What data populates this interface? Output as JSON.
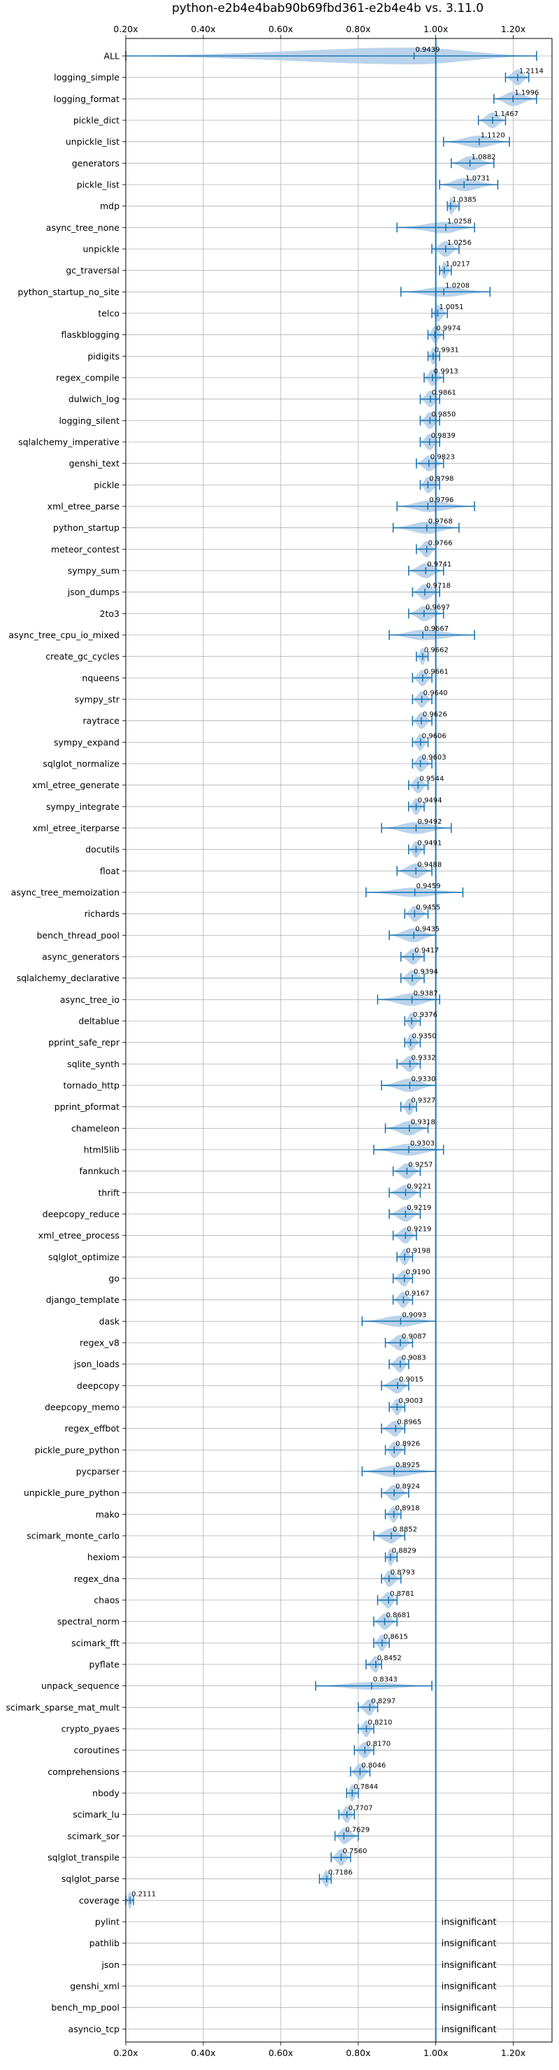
{
  "chart_data": {
    "type": "violin",
    "title": "python-e2b4e4bab90b69fbd361-e2b4e4b vs. 3.11.0",
    "xlim": [
      0.2,
      1.3
    ],
    "xticks": [
      0.2,
      0.4,
      0.6,
      0.8,
      1.0,
      1.2
    ],
    "xtick_labels": [
      "0.20x",
      "0.40x",
      "0.60x",
      "0.80x",
      "1.00x",
      "1.20x"
    ],
    "reference_line": 1.0,
    "grid": true,
    "accent_color": "#1f77b4",
    "violin_color": "#aecbe6",
    "insignificant_label": "insignificant",
    "categories": [
      "ALL",
      "logging_simple",
      "logging_format",
      "pickle_dict",
      "unpickle_list",
      "generators",
      "pickle_list",
      "mdp",
      "async_tree_none",
      "unpickle",
      "gc_traversal",
      "python_startup_no_site",
      "telco",
      "flaskblogging",
      "pidigits",
      "regex_compile",
      "dulwich_log",
      "logging_silent",
      "sqlalchemy_imperative",
      "genshi_text",
      "pickle",
      "xml_etree_parse",
      "python_startup",
      "meteor_contest",
      "sympy_sum",
      "json_dumps",
      "2to3",
      "async_tree_cpu_io_mixed",
      "create_gc_cycles",
      "nqueens",
      "sympy_str",
      "raytrace",
      "sympy_expand",
      "sqlglot_normalize",
      "xml_etree_generate",
      "sympy_integrate",
      "xml_etree_iterparse",
      "docutils",
      "float",
      "async_tree_memoization",
      "richards",
      "bench_thread_pool",
      "async_generators",
      "sqlalchemy_declarative",
      "async_tree_io",
      "deltablue",
      "pprint_safe_repr",
      "sqlite_synth",
      "tornado_http",
      "pprint_pformat",
      "chameleon",
      "html5lib",
      "fannkuch",
      "thrift",
      "deepcopy_reduce",
      "xml_etree_process",
      "sqlglot_optimize",
      "go",
      "django_template",
      "dask",
      "regex_v8",
      "json_loads",
      "deepcopy",
      "deepcopy_memo",
      "regex_effbot",
      "pickle_pure_python",
      "pycparser",
      "unpickle_pure_python",
      "mako",
      "scimark_monte_carlo",
      "hexiom",
      "regex_dna",
      "chaos",
      "spectral_norm",
      "scimark_fft",
      "pyflate",
      "unpack_sequence",
      "scimark_sparse_mat_mult",
      "crypto_pyaes",
      "coroutines",
      "comprehensions",
      "nbody",
      "scimark_lu",
      "scimark_sor",
      "sqlglot_transpile",
      "sqlglot_parse",
      "coverage",
      "pylint",
      "pathlib",
      "json",
      "genshi_xml",
      "bench_mp_pool",
      "asyncio_tcp"
    ],
    "values": [
      0.9439,
      1.2114,
      1.1996,
      1.1467,
      1.112,
      1.0882,
      1.0731,
      1.0385,
      1.0258,
      1.0256,
      1.0217,
      1.0208,
      1.0051,
      0.9974,
      0.9931,
      0.9913,
      0.9861,
      0.985,
      0.9839,
      0.9823,
      0.9798,
      0.9796,
      0.9768,
      0.9766,
      0.9741,
      0.9718,
      0.9697,
      0.9667,
      0.9662,
      0.9661,
      0.964,
      0.9626,
      0.9606,
      0.9603,
      0.9544,
      0.9494,
      0.9492,
      0.9491,
      0.9488,
      0.9459,
      0.9455,
      0.9435,
      0.9417,
      0.9394,
      0.9387,
      0.9376,
      0.935,
      0.9332,
      0.933,
      0.9327,
      0.9318,
      0.9303,
      0.9257,
      0.9221,
      0.9219,
      0.9219,
      0.9198,
      0.919,
      0.9167,
      0.9093,
      0.9087,
      0.9083,
      0.9015,
      0.9003,
      0.8965,
      0.8926,
      0.8925,
      0.8924,
      0.8918,
      0.8852,
      0.8829,
      0.8793,
      0.8781,
      0.8681,
      0.8615,
      0.8452,
      0.8343,
      0.8297,
      0.821,
      0.817,
      0.8046,
      0.7844,
      0.7707,
      0.7629,
      0.756,
      0.7186,
      0.2111,
      null,
      null,
      null,
      null,
      null,
      null
    ],
    "value_labels": [
      "0.9439",
      "1.2114",
      "1.1996",
      "1.1467",
      "1.1120",
      "1.0882",
      "1.0731",
      "1.0385",
      "1.0258",
      "1.0256",
      "1.0217",
      "1.0208",
      "1.0051",
      "0.9974",
      "0.9931",
      "0.9913",
      "0.9861",
      "0.9850",
      "0.9839",
      "0.9823",
      "0.9798",
      "0.9796",
      "0.9768",
      "0.9766",
      "0.9741",
      "0.9718",
      "0.9697",
      "0.9667",
      "0.9662",
      "0.9661",
      "0.9640",
      "0.9626",
      "0.9606",
      "0.9603",
      "0.9544",
      "0.9494",
      "0.9492",
      "0.9491",
      "0.9488",
      "0.9459",
      "0.9455",
      "0.9435",
      "0.9417",
      "0.9394",
      "0.9387",
      "0.9376",
      "0.9350",
      "0.9332",
      "0.9330",
      "0.9327",
      "0.9318",
      "0.9303",
      "0.9257",
      "0.9221",
      "0.9219",
      "0.9219",
      "0.9198",
      "0.9190",
      "0.9167",
      "0.9093",
      "0.9087",
      "0.9083",
      "0.9015",
      "0.9003",
      "0.8965",
      "0.8926",
      "0.8925",
      "0.8924",
      "0.8918",
      "0.8852",
      "0.8829",
      "0.8793",
      "0.8781",
      "0.8681",
      "0.8615",
      "0.8452",
      "0.8343",
      "0.8297",
      "0.8210",
      "0.8170",
      "0.8046",
      "0.7844",
      "0.7707",
      "0.7629",
      "0.7560",
      "0.7186",
      "0.2111",
      "",
      "",
      "",
      "",
      "",
      ""
    ],
    "ranges": [
      [
        0.2,
        1.26
      ],
      [
        1.18,
        1.24
      ],
      [
        1.15,
        1.26
      ],
      [
        1.11,
        1.18
      ],
      [
        1.02,
        1.19
      ],
      [
        1.04,
        1.15
      ],
      [
        1.01,
        1.16
      ],
      [
        1.03,
        1.06
      ],
      [
        0.9,
        1.1
      ],
      [
        0.99,
        1.06
      ],
      [
        1.01,
        1.04
      ],
      [
        0.91,
        1.14
      ],
      [
        0.99,
        1.03
      ],
      [
        0.98,
        1.02
      ],
      [
        0.98,
        1.01
      ],
      [
        0.97,
        1.02
      ],
      [
        0.96,
        1.01
      ],
      [
        0.96,
        1.01
      ],
      [
        0.96,
        1.01
      ],
      [
        0.95,
        1.02
      ],
      [
        0.96,
        1.01
      ],
      [
        0.9,
        1.1
      ],
      [
        0.89,
        1.06
      ],
      [
        0.95,
        1.0
      ],
      [
        0.93,
        1.02
      ],
      [
        0.94,
        1.01
      ],
      [
        0.93,
        1.02
      ],
      [
        0.88,
        1.1
      ],
      [
        0.95,
        0.98
      ],
      [
        0.94,
        0.99
      ],
      [
        0.94,
        0.99
      ],
      [
        0.94,
        0.99
      ],
      [
        0.94,
        0.98
      ],
      [
        0.94,
        0.99
      ],
      [
        0.93,
        0.98
      ],
      [
        0.93,
        0.97
      ],
      [
        0.86,
        1.04
      ],
      [
        0.93,
        0.97
      ],
      [
        0.9,
        0.99
      ],
      [
        0.82,
        1.07
      ],
      [
        0.92,
        0.98
      ],
      [
        0.88,
        1.0
      ],
      [
        0.91,
        0.97
      ],
      [
        0.91,
        0.97
      ],
      [
        0.85,
        1.01
      ],
      [
        0.92,
        0.96
      ],
      [
        0.92,
        0.96
      ],
      [
        0.9,
        0.96
      ],
      [
        0.86,
        1.0
      ],
      [
        0.91,
        0.95
      ],
      [
        0.87,
        0.98
      ],
      [
        0.84,
        1.02
      ],
      [
        0.89,
        0.96
      ],
      [
        0.88,
        0.96
      ],
      [
        0.88,
        0.96
      ],
      [
        0.89,
        0.95
      ],
      [
        0.9,
        0.94
      ],
      [
        0.89,
        0.94
      ],
      [
        0.89,
        0.94
      ],
      [
        0.81,
        1.0
      ],
      [
        0.87,
        0.94
      ],
      [
        0.88,
        0.93
      ],
      [
        0.86,
        0.93
      ],
      [
        0.88,
        0.92
      ],
      [
        0.86,
        0.92
      ],
      [
        0.87,
        0.92
      ],
      [
        0.81,
        1.0
      ],
      [
        0.86,
        0.93
      ],
      [
        0.87,
        0.91
      ],
      [
        0.84,
        0.92
      ],
      [
        0.87,
        0.9
      ],
      [
        0.86,
        0.91
      ],
      [
        0.85,
        0.9
      ],
      [
        0.84,
        0.9
      ],
      [
        0.84,
        0.88
      ],
      [
        0.82,
        0.86
      ],
      [
        0.69,
        0.99
      ],
      [
        0.8,
        0.85
      ],
      [
        0.8,
        0.84
      ],
      [
        0.79,
        0.84
      ],
      [
        0.78,
        0.83
      ],
      [
        0.77,
        0.8
      ],
      [
        0.75,
        0.79
      ],
      [
        0.74,
        0.8
      ],
      [
        0.73,
        0.78
      ],
      [
        0.7,
        0.73
      ],
      [
        0.2,
        0.22
      ],
      null,
      null,
      null,
      null,
      null,
      null
    ]
  }
}
